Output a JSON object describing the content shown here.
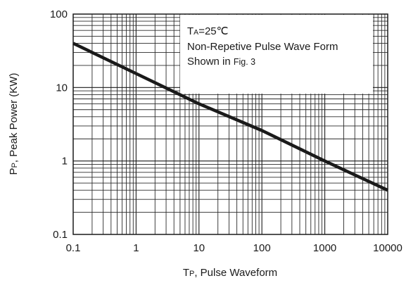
{
  "chart_data": {
    "type": "line",
    "x_scale": "log",
    "y_scale": "log",
    "xlim": [
      0.1,
      10000
    ],
    "ylim": [
      0.1,
      100
    ],
    "grid": true,
    "x_ticks": [
      "0.1",
      "1",
      "10",
      "100",
      "1000",
      "10000"
    ],
    "y_ticks": [
      "0.1",
      "1",
      "10",
      "100"
    ],
    "xlabel": {
      "main": "T",
      "sub": "P",
      "rest": ", Pulse Waveform"
    },
    "ylabel": {
      "main": "P",
      "sub": "P",
      "rest": ", Peak Power  (KW)"
    },
    "annotation": {
      "line1": {
        "main": "T",
        "sub": "A",
        "rest": "=25℃"
      },
      "line2": "Non-Repetive Pulse Wave Form",
      "line3": {
        "main": "Shown in ",
        "small": "Fig. 3"
      }
    },
    "series": [
      {
        "x": [
          0.1,
          1,
          10,
          100,
          1000,
          10000
        ],
        "y": [
          40,
          15.5,
          6.0,
          2.6,
          1.0,
          0.4
        ]
      }
    ],
    "line_color": "#1a1a1a"
  }
}
